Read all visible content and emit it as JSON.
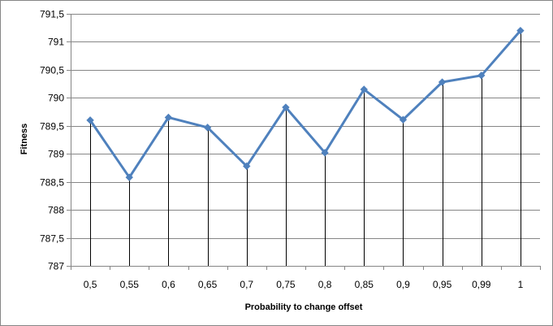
{
  "chart_data": {
    "type": "line",
    "title": "",
    "xlabel": "Probability to change  offset",
    "ylabel": "Fitness",
    "categories": [
      "0,5",
      "0,55",
      "0,6",
      "0,65",
      "0,7",
      "0,75",
      "0,8",
      "0,85",
      "0,9",
      "0,95",
      "0,99",
      "1"
    ],
    "series": [
      {
        "values": [
          789.6,
          788.58,
          789.65,
          789.47,
          788.78,
          789.83,
          789.02,
          790.15,
          789.61,
          790.28,
          790.4,
          791.2
        ],
        "color": "#4f81bd",
        "marker": "diamond"
      }
    ],
    "ylim": [
      787,
      791.5
    ],
    "yticks": [
      787,
      787.5,
      788,
      788.5,
      789,
      789.5,
      790,
      790.5,
      791,
      791.5
    ],
    "ytick_labels": [
      "787",
      "787,5",
      "788",
      "788,5",
      "789",
      "789,5",
      "790",
      "790,5",
      "791",
      "791,5"
    ],
    "grid": true,
    "drop_lines": true,
    "legend": "none"
  }
}
